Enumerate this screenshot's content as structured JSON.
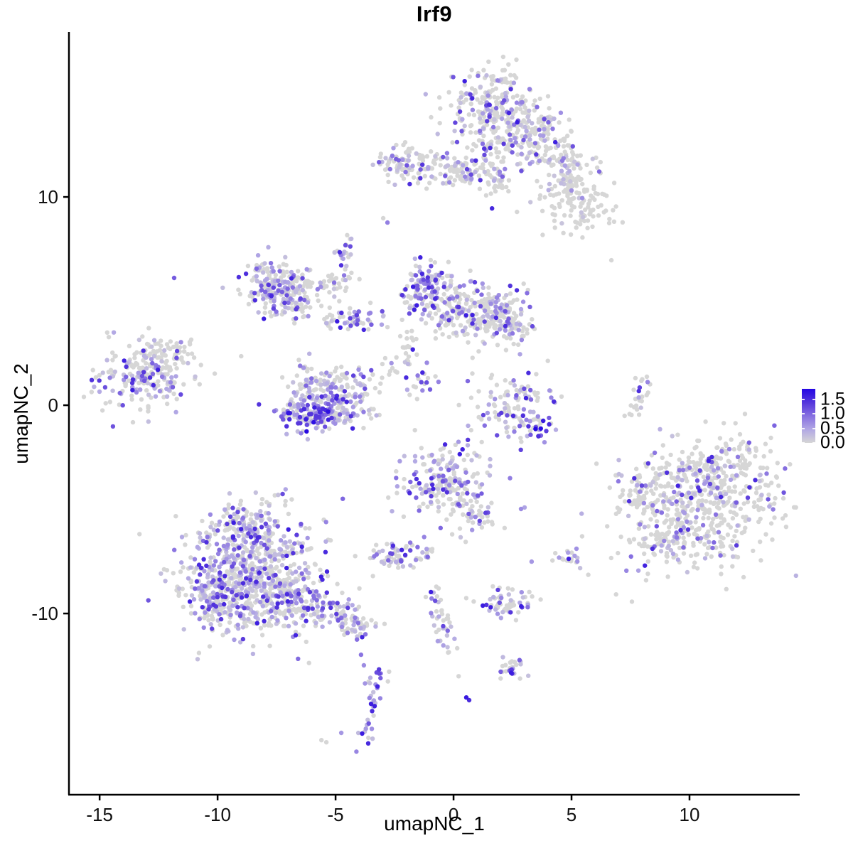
{
  "chart_data": {
    "type": "scatter",
    "title": "Irf9",
    "xlabel": "umapNC_1",
    "ylabel": "umapNC_2",
    "xlim": [
      -16.3,
      14.67
    ],
    "ylim": [
      -18.7,
      17.92
    ],
    "x_ticks": [
      -15,
      -10,
      -5,
      0,
      5,
      10
    ],
    "y_ticks": [
      -10,
      0,
      10
    ],
    "grid": false,
    "axis_color": "#000000",
    "point_radius_px": 3.2,
    "color_ramp": [
      [
        0.0,
        "#D6D6D6"
      ],
      [
        0.45,
        "#B3A9E4"
      ],
      [
        0.9,
        "#8A74E1"
      ],
      [
        1.4,
        "#5536DC"
      ],
      [
        1.9,
        "#2406E3"
      ]
    ],
    "legend": {
      "position": "right",
      "labels": [
        "1.5",
        "1.0",
        "0.5",
        "0.0"
      ],
      "values": [
        1.5,
        1.0,
        0.5,
        0.0
      ],
      "vmax_bar": 1.875
    },
    "clusters_note": "UMAP cell clusters: [center_x, center_y, sd_x, sd_y, n_cells, expressing_fraction, expression_profile(L=low,M=mid,D=dark), rotation_deg]",
    "clusters": [
      [
        1.57,
        14.33,
        0.9,
        0.96,
        200,
        0.4,
        "M",
        0
      ],
      [
        2.47,
        12.97,
        1.05,
        0.85,
        160,
        0.3,
        "M",
        0
      ],
      [
        3.83,
        13.48,
        0.54,
        0.51,
        50,
        0.2,
        "L",
        0
      ],
      [
        4.43,
        11.77,
        0.9,
        0.51,
        90,
        0.22,
        "L",
        -25
      ],
      [
        5.18,
        9.56,
        0.84,
        0.68,
        110,
        0.15,
        "L",
        -10
      ],
      [
        4.88,
        10.75,
        0.45,
        0.34,
        30,
        0.1,
        "L",
        0
      ],
      [
        -2.41,
        11.67,
        0.54,
        0.44,
        60,
        0.35,
        "M",
        0
      ],
      [
        -0.78,
        11.43,
        0.9,
        0.38,
        85,
        0.3,
        "M",
        0
      ],
      [
        0.9,
        11.16,
        0.6,
        0.38,
        55,
        0.25,
        "M",
        0
      ],
      [
        1.87,
        10.51,
        0.3,
        0.27,
        15,
        0.1,
        "L",
        0
      ],
      [
        -4.55,
        6.93,
        0.21,
        0.82,
        28,
        0.5,
        "M",
        0
      ],
      [
        -7.8,
        5.8,
        0.5,
        0.6,
        110,
        0.5,
        "M",
        -10
      ],
      [
        -7.0,
        5.1,
        0.8,
        0.6,
        130,
        0.4,
        "M",
        -10
      ],
      [
        -5.72,
        5.87,
        0.75,
        0.34,
        55,
        0.2,
        "L",
        0
      ],
      [
        -4.25,
        4.16,
        0.84,
        0.31,
        55,
        0.4,
        "M",
        0
      ],
      [
        -1.14,
        5.8,
        0.51,
        0.55,
        110,
        0.6,
        "M",
        0
      ],
      [
        0.06,
        4.71,
        1.05,
        0.75,
        190,
        0.32,
        "M",
        0
      ],
      [
        1.81,
        4.27,
        0.78,
        0.55,
        120,
        0.45,
        "M",
        0
      ],
      [
        2.62,
        3.75,
        0.36,
        0.34,
        30,
        0.3,
        "M",
        0
      ],
      [
        -1.99,
        2.66,
        0.27,
        0.61,
        22,
        0.3,
        "M",
        0
      ],
      [
        -1.45,
        1.02,
        0.36,
        0.48,
        18,
        0.4,
        "M",
        0
      ],
      [
        -2.65,
        1.88,
        0.24,
        0.41,
        10,
        0.1,
        "L",
        0
      ],
      [
        -13.04,
        1.54,
        1.02,
        0.85,
        240,
        0.38,
        "M",
        10
      ],
      [
        -11.75,
        2.66,
        0.3,
        0.24,
        20,
        0.1,
        "L",
        30
      ],
      [
        -6.35,
        0.5,
        0.48,
        0.7,
        80,
        0.45,
        "M",
        0
      ],
      [
        -4.6,
        0.35,
        0.72,
        0.65,
        110,
        0.5,
        "M",
        0
      ],
      [
        -5.6,
        -0.35,
        0.85,
        0.32,
        95,
        0.6,
        "M",
        0
      ],
      [
        -6.02,
        -0.61,
        0.66,
        0.28,
        50,
        0.8,
        "D",
        0
      ],
      [
        -5.12,
        1.19,
        0.75,
        0.34,
        45,
        0.25,
        "L",
        0
      ],
      [
        2.71,
        -0.07,
        0.9,
        0.82,
        120,
        0.42,
        "M",
        0
      ],
      [
        3.58,
        -1.09,
        0.3,
        0.27,
        18,
        0.7,
        "D",
        0
      ],
      [
        7.89,
        0.41,
        0.21,
        0.68,
        24,
        0.3,
        "M",
        -15
      ],
      [
        10.45,
        -4.78,
        1.9,
        1.5,
        560,
        0.2,
        "M",
        25
      ],
      [
        8.13,
        -4.44,
        0.42,
        0.61,
        45,
        0.25,
        "M",
        0
      ],
      [
        8.8,
        -6.66,
        0.54,
        0.48,
        50,
        0.3,
        "M",
        0
      ],
      [
        10.9,
        -2.73,
        1.2,
        0.51,
        80,
        0.15,
        "L",
        15
      ],
      [
        -0.3,
        -3.69,
        1.02,
        0.92,
        220,
        0.42,
        "M",
        -15
      ],
      [
        1.02,
        -5.29,
        0.42,
        0.34,
        30,
        0.3,
        "M",
        -20
      ],
      [
        -2.41,
        -7.17,
        0.6,
        0.44,
        65,
        0.45,
        "M",
        0
      ],
      [
        -1.02,
        -7.1,
        0.18,
        0.14,
        6,
        0.1,
        "L",
        0
      ],
      [
        5.0,
        -7.41,
        0.33,
        0.31,
        22,
        0.5,
        "M",
        0
      ],
      [
        -8.61,
        -8.26,
        1.45,
        1.37,
        620,
        0.5,
        "M",
        0
      ],
      [
        -8.67,
        -5.87,
        0.78,
        0.75,
        150,
        0.45,
        "M",
        0
      ],
      [
        -10.12,
        -8.94,
        0.6,
        0.89,
        130,
        0.5,
        "M",
        0
      ],
      [
        -6.93,
        -9.15,
        0.66,
        0.61,
        110,
        0.45,
        "M",
        -15
      ],
      [
        -5.3,
        -9.97,
        0.9,
        0.44,
        90,
        0.45,
        "M",
        -18
      ],
      [
        -4.01,
        -10.65,
        0.3,
        0.24,
        25,
        0.5,
        "M",
        0
      ],
      [
        -0.51,
        -10.51,
        0.24,
        0.89,
        40,
        0.35,
        "M",
        15
      ],
      [
        2.29,
        -9.52,
        0.66,
        0.38,
        60,
        0.35,
        "M",
        0
      ],
      [
        2.35,
        -12.66,
        0.36,
        0.27,
        26,
        0.5,
        "M",
        0
      ],
      [
        -3.46,
        -14.4,
        0.21,
        0.85,
        38,
        0.7,
        "M",
        -8
      ]
    ],
    "singles_note": "Isolated/notable cells: [x, y, expression_value]",
    "singles": [
      [
        -3.92,
        -11.98,
        0.9
      ],
      [
        -3.8,
        -12.49,
        0.7
      ],
      [
        -0.78,
        -9.39,
        1.2
      ],
      [
        -0.93,
        -9.28,
        0.8
      ],
      [
        0.54,
        -14.03,
        1.7
      ],
      [
        0.66,
        -14.16,
        1.5
      ],
      [
        -4.76,
        -15.73,
        0.6
      ],
      [
        -5.6,
        -16.08,
        0
      ],
      [
        -5.39,
        -16.18,
        0
      ],
      [
        -11.84,
        6.11,
        1.1
      ],
      [
        6.69,
        6.96,
        0
      ],
      [
        -2.8,
        8.77,
        0.8
      ],
      [
        -2.98,
        8.98,
        0
      ],
      [
        2.86,
        -4.98,
        0.7
      ],
      [
        3.01,
        -4.91,
        0.5
      ],
      [
        3.31,
        -7.51,
        0.6
      ],
      [
        3.07,
        0.34,
        1.6
      ],
      [
        2.53,
        -0.51,
        1.5
      ],
      [
        3.8,
        -0.75,
        1.7
      ],
      [
        -1.33,
        6.31,
        1.55
      ],
      [
        -0.9,
        -3.82,
        1.5
      ],
      [
        9.94,
        -5.97,
        1.4
      ],
      [
        12.47,
        -4.44,
        1.3
      ],
      [
        8.43,
        -6.89,
        1.5
      ],
      [
        1.63,
        9.45,
        1.55
      ],
      [
        1.3,
        12.32,
        1.4
      ],
      [
        -4.58,
        7.68,
        1.2
      ],
      [
        7.89,
        0.85,
        1.3
      ],
      [
        0.57,
        11.33,
        1.3
      ],
      [
        -5.93,
        -0.82,
        1.8
      ],
      [
        -1.14,
        1.09,
        1.2
      ],
      [
        0.6,
        1.16,
        1.0
      ],
      [
        3.58,
        12.35,
        0
      ],
      [
        6.23,
        11.67,
        0
      ]
    ]
  }
}
